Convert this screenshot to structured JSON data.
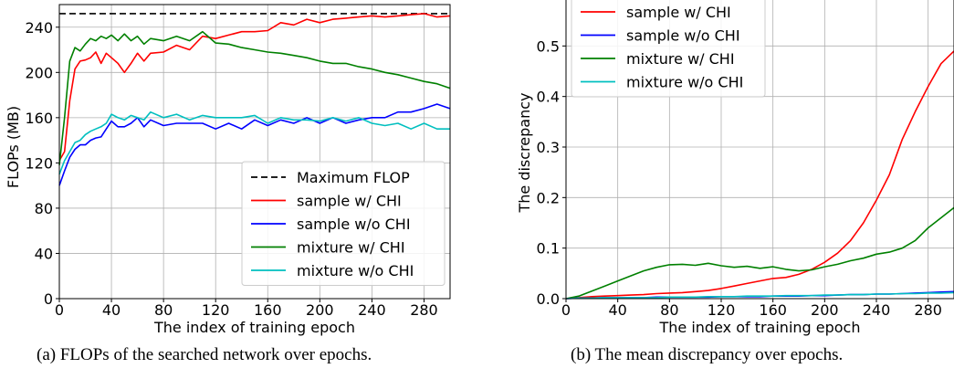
{
  "chart_data": [
    {
      "type": "line",
      "xlabel": "The index of training epoch",
      "ylabel": "FLOPs (MB)",
      "xlim": [
        0,
        300
      ],
      "ylim": [
        0,
        260
      ],
      "xticks": [
        0,
        40,
        80,
        120,
        160,
        200,
        240,
        280
      ],
      "yticks": [
        0,
        40,
        80,
        120,
        160,
        200,
        240
      ],
      "grid": true,
      "legend_position": "lower-right",
      "reference_line": {
        "name": "Maximum FLOP",
        "y": 252,
        "color": "#000000",
        "style": "dashed"
      },
      "x": [
        0,
        4,
        8,
        12,
        16,
        20,
        24,
        28,
        32,
        36,
        40,
        45,
        50,
        55,
        60,
        65,
        70,
        80,
        90,
        100,
        110,
        120,
        130,
        140,
        150,
        160,
        170,
        180,
        190,
        200,
        210,
        220,
        230,
        240,
        250,
        260,
        270,
        280,
        290,
        300
      ],
      "series": [
        {
          "name": "sample w/ CHI",
          "color": "#ff0000",
          "values": [
            122,
            130,
            175,
            203,
            210,
            211,
            213,
            218,
            208,
            217,
            213,
            208,
            200,
            208,
            217,
            210,
            217,
            218,
            224,
            220,
            232,
            230,
            233,
            236,
            236,
            237,
            244,
            242,
            247,
            244,
            247,
            248,
            249,
            250,
            249,
            250,
            251,
            252,
            249,
            250
          ]
        },
        {
          "name": "sample w/o CHI",
          "color": "#0000ff",
          "values": [
            100,
            113,
            125,
            132,
            136,
            136,
            140,
            142,
            143,
            150,
            157,
            152,
            152,
            155,
            160,
            152,
            158,
            153,
            155,
            155,
            155,
            150,
            155,
            150,
            158,
            153,
            158,
            155,
            160,
            155,
            160,
            155,
            158,
            160,
            160,
            165,
            165,
            168,
            172,
            168
          ]
        },
        {
          "name": "mixture w/ CHI",
          "color": "#008000",
          "values": [
            118,
            160,
            210,
            222,
            219,
            225,
            230,
            228,
            232,
            230,
            233,
            228,
            234,
            228,
            232,
            225,
            230,
            228,
            232,
            228,
            236,
            226,
            225,
            222,
            220,
            218,
            217,
            215,
            213,
            210,
            208,
            208,
            205,
            203,
            200,
            198,
            195,
            192,
            190,
            186
          ]
        },
        {
          "name": "mixture w/o CHI",
          "color": "#00bfbf",
          "values": [
            110,
            122,
            130,
            138,
            140,
            145,
            148,
            150,
            152,
            155,
            163,
            160,
            158,
            162,
            160,
            158,
            165,
            160,
            163,
            158,
            162,
            160,
            160,
            160,
            162,
            155,
            160,
            158,
            158,
            157,
            160,
            157,
            160,
            155,
            153,
            155,
            150,
            155,
            150,
            150
          ]
        }
      ]
    },
    {
      "type": "line",
      "xlabel": "The index of training epoch",
      "ylabel": "The discrepancy",
      "xlim": [
        0,
        300
      ],
      "ylim": [
        0,
        0.6
      ],
      "xticks": [
        0,
        40,
        80,
        120,
        160,
        200,
        240,
        280
      ],
      "yticks": [
        0.0,
        0.1,
        0.2,
        0.3,
        0.4,
        0.5
      ],
      "grid": true,
      "legend_position": "top-left",
      "x": [
        0,
        10,
        20,
        30,
        40,
        50,
        60,
        70,
        80,
        90,
        100,
        110,
        120,
        130,
        140,
        150,
        160,
        170,
        180,
        190,
        200,
        210,
        220,
        230,
        240,
        250,
        260,
        270,
        280,
        290,
        300
      ],
      "series": [
        {
          "name": "sample w/ CHI",
          "color": "#ff0000",
          "values": [
            0.0,
            0.002,
            0.004,
            0.005,
            0.006,
            0.007,
            0.008,
            0.01,
            0.011,
            0.012,
            0.014,
            0.016,
            0.02,
            0.025,
            0.03,
            0.035,
            0.04,
            0.042,
            0.048,
            0.058,
            0.072,
            0.09,
            0.115,
            0.15,
            0.195,
            0.245,
            0.315,
            0.37,
            0.42,
            0.465,
            0.49
          ]
        },
        {
          "name": "sample w/o CHI",
          "color": "#0000ff",
          "values": [
            0.0,
            0.001,
            0.001,
            0.002,
            0.002,
            0.002,
            0.002,
            0.003,
            0.003,
            0.003,
            0.003,
            0.003,
            0.004,
            0.004,
            0.004,
            0.004,
            0.005,
            0.005,
            0.005,
            0.006,
            0.006,
            0.007,
            0.008,
            0.008,
            0.009,
            0.009,
            0.01,
            0.011,
            0.012,
            0.013,
            0.014
          ]
        },
        {
          "name": "mixture w/ CHI",
          "color": "#008000",
          "values": [
            0.0,
            0.005,
            0.015,
            0.025,
            0.035,
            0.045,
            0.055,
            0.062,
            0.067,
            0.068,
            0.066,
            0.07,
            0.065,
            0.062,
            0.064,
            0.06,
            0.063,
            0.058,
            0.055,
            0.057,
            0.063,
            0.068,
            0.075,
            0.08,
            0.088,
            0.092,
            0.1,
            0.115,
            0.14,
            0.16,
            0.18
          ]
        },
        {
          "name": "mixture w/o CHI",
          "color": "#00bfbf",
          "values": [
            0.0,
            0.001,
            0.001,
            0.002,
            0.002,
            0.002,
            0.002,
            0.002,
            0.003,
            0.003,
            0.003,
            0.004,
            0.004,
            0.004,
            0.005,
            0.005,
            0.005,
            0.006,
            0.006,
            0.006,
            0.007,
            0.007,
            0.008,
            0.008,
            0.009,
            0.009,
            0.01,
            0.01,
            0.011,
            0.011,
            0.012
          ]
        }
      ]
    }
  ],
  "captions": {
    "a": "(a) FLOPs of the searched network over epochs.",
    "b": "(b) The mean discrepancy over epochs."
  }
}
